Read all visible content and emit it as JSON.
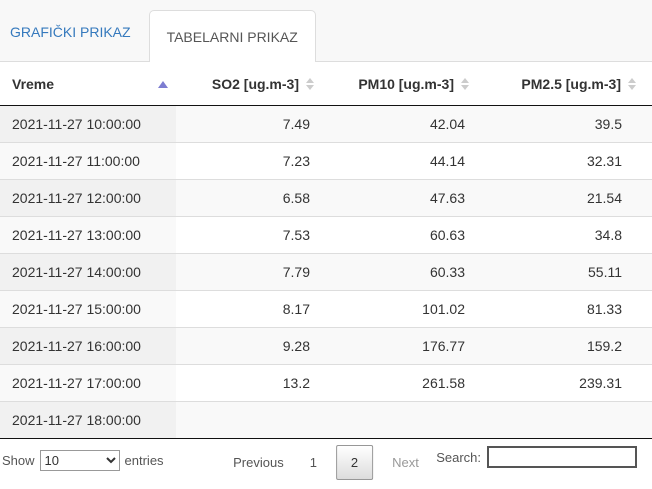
{
  "colors": {
    "accent": "#3579bd",
    "sort-active": "#7d7dd1",
    "tab-bg": "#f8f8f8",
    "stripe": "#f9f9f9",
    "stripe-sorted": "#f1f1f1"
  },
  "tabs": {
    "graficki": {
      "label": "GRAFIČKI PRIKAZ",
      "active": false
    },
    "tabelarni": {
      "label": "TABELARNI PRIKAZ",
      "active": true
    }
  },
  "table": {
    "columns": [
      {
        "label": "Vreme",
        "sorted": "asc"
      },
      {
        "label": "SO2 [ug.m-3]",
        "sorted": "none"
      },
      {
        "label": "PM10 [ug.m-3]",
        "sorted": "none"
      },
      {
        "label": "PM2.5 [ug.m-3]",
        "sorted": "none"
      }
    ],
    "rows": [
      [
        "2021-11-27 10:00:00",
        "7.49",
        "42.04",
        "39.5"
      ],
      [
        "2021-11-27 11:00:00",
        "7.23",
        "44.14",
        "32.31"
      ],
      [
        "2021-11-27 12:00:00",
        "6.58",
        "47.63",
        "21.54"
      ],
      [
        "2021-11-27 13:00:00",
        "7.53",
        "60.63",
        "34.8"
      ],
      [
        "2021-11-27 14:00:00",
        "7.79",
        "60.33",
        "55.11"
      ],
      [
        "2021-11-27 15:00:00",
        "8.17",
        "101.02",
        "81.33"
      ],
      [
        "2021-11-27 16:00:00",
        "9.28",
        "176.77",
        "159.2"
      ],
      [
        "2021-11-27 17:00:00",
        "13.2",
        "261.58",
        "239.31"
      ],
      [
        "2021-11-27 18:00:00",
        "",
        "",
        ""
      ]
    ]
  },
  "footer": {
    "show_label": "Show",
    "entries_label": "entries",
    "length_value": "10",
    "length_options": [
      "10"
    ],
    "search_label": "Search:",
    "search_value": "",
    "pagination": {
      "previous_label": "Previous",
      "pages": [
        "1",
        "2"
      ],
      "current_page": "2",
      "next_label": "Next"
    }
  }
}
